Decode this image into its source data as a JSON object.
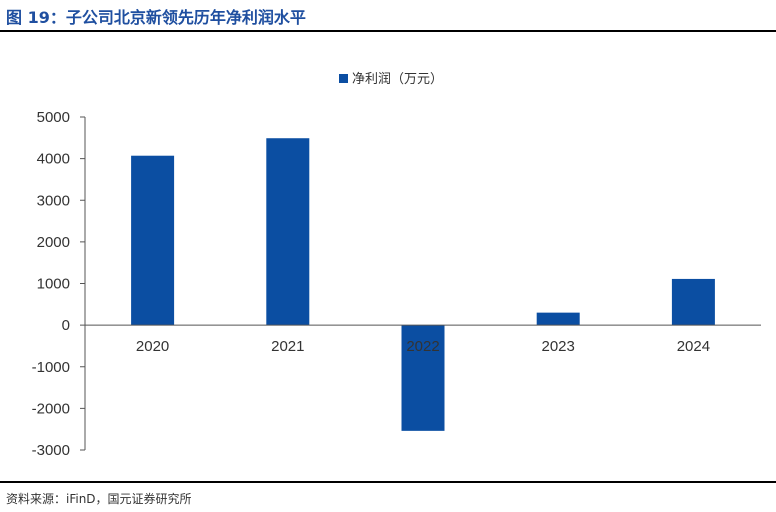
{
  "figure": {
    "title": "图 19：子公司北京新领先历年净利润水平",
    "source": "资料来源：iFinD，国元证券研究所"
  },
  "chart_data": {
    "type": "bar",
    "categories": [
      "2020",
      "2021",
      "2022",
      "2023",
      "2024"
    ],
    "series": [
      {
        "name": "净利润（万元）",
        "values": [
          4070,
          4490,
          -2540,
          300,
          1110
        ],
        "color": "#0b4ea2"
      }
    ],
    "ylim": [
      -3000,
      5000
    ],
    "yticks": [
      "5000",
      "4000",
      "3000",
      "2000",
      "1000",
      "0",
      "-1000",
      "-2000",
      "-3000"
    ],
    "grid": false,
    "legend": "top-center"
  }
}
